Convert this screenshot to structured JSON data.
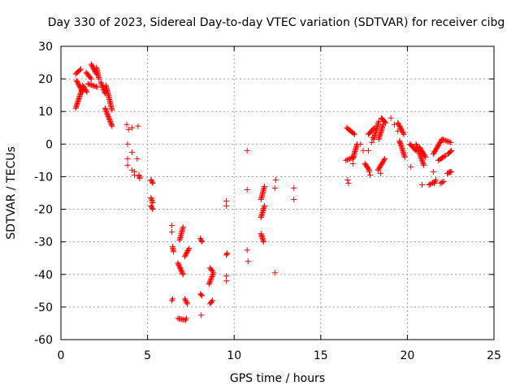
{
  "chart_data": {
    "type": "scatter",
    "title": "Day 330 of 2023, Sidereal Day-to-day VTEC variation (SDTVAR) for receiver cibg",
    "xlabel": "GPS time / hours",
    "ylabel": "SDTVAR / TECUs",
    "xlim": [
      0,
      25
    ],
    "ylim": [
      -60,
      30
    ],
    "xticks": [
      0,
      5,
      10,
      15,
      20,
      25
    ],
    "yticks": [
      -60,
      -50,
      -40,
      -30,
      -20,
      -10,
      0,
      10,
      20,
      30
    ],
    "grid": true,
    "marker": "+",
    "color": "#ff0000",
    "series": [
      {
        "name": "SDTVAR",
        "segments": [
          [
            [
              0.85,
              21.5
            ],
            [
              1.15,
              23.0
            ]
          ],
          [
            [
              0.9,
              19.5
            ],
            [
              1.25,
              16.0
            ]
          ],
          [
            [
              0.85,
              11.0
            ],
            [
              1.2,
              16.5
            ]
          ],
          [
            [
              1.25,
              18.0
            ],
            [
              1.5,
              16.0
            ]
          ],
          [
            [
              1.45,
              22.0
            ],
            [
              1.75,
              20.0
            ]
          ],
          [
            [
              1.75,
              24.5
            ],
            [
              2.05,
              21.5
            ]
          ],
          [
            [
              1.55,
              18.5
            ],
            [
              2.1,
              17.5
            ]
          ],
          [
            [
              2.05,
              23.5
            ],
            [
              2.2,
              20.0
            ]
          ],
          [
            [
              2.3,
              19.0
            ],
            [
              2.55,
              15.5
            ]
          ],
          [
            [
              2.6,
              18.0
            ],
            [
              2.95,
              10.5
            ]
          ],
          [
            [
              2.55,
              11.0
            ],
            [
              2.95,
              5.5
            ]
          ],
          [
            [
              4.5,
              -9.5
            ],
            [
              4.55,
              -10.5
            ]
          ],
          [
            [
              5.2,
              -11.0
            ],
            [
              5.3,
              -12.0
            ]
          ],
          [
            [
              5.2,
              -16.5
            ],
            [
              5.3,
              -18.0
            ]
          ],
          [
            [
              5.2,
              -19.0
            ],
            [
              5.3,
              -20.0
            ]
          ],
          [
            [
              6.45,
              -31.5
            ],
            [
              6.5,
              -33.0
            ]
          ],
          [
            [
              6.75,
              -36.5
            ],
            [
              7.05,
              -40.0
            ]
          ],
          [
            [
              6.85,
              -29.5
            ],
            [
              7.05,
              -25.5
            ]
          ],
          [
            [
              7.15,
              -34.5
            ],
            [
              7.4,
              -32.0
            ]
          ],
          [
            [
              7.15,
              -47.5
            ],
            [
              7.3,
              -49.0
            ]
          ],
          [
            [
              6.75,
              -53.5
            ],
            [
              7.2,
              -54.0
            ]
          ],
          [
            [
              8.05,
              -29.0
            ],
            [
              8.15,
              -30.0
            ]
          ],
          [
            [
              8.05,
              -46.0
            ],
            [
              8.15,
              -46.5
            ]
          ],
          [
            [
              8.6,
              -38.0
            ],
            [
              8.75,
              -39.0
            ]
          ],
          [
            [
              8.55,
              -43.0
            ],
            [
              8.8,
              -39.5
            ]
          ],
          [
            [
              8.6,
              -49.0
            ],
            [
              8.75,
              -48.0
            ]
          ],
          [
            [
              9.55,
              -34.0
            ],
            [
              9.6,
              -33.5
            ]
          ],
          [
            [
              11.55,
              -17.0
            ],
            [
              11.75,
              -13.0
            ]
          ],
          [
            [
              11.55,
              -22.5
            ],
            [
              11.75,
              -19.0
            ]
          ],
          [
            [
              11.55,
              -27.5
            ],
            [
              11.7,
              -30.0
            ]
          ],
          [
            [
              16.5,
              5.0
            ],
            [
              16.95,
              3.0
            ]
          ],
          [
            [
              16.45,
              -5.0
            ],
            [
              16.9,
              -4.0
            ]
          ],
          [
            [
              16.85,
              -4.5
            ],
            [
              17.1,
              0.0
            ]
          ],
          [
            [
              17.55,
              -6.0
            ],
            [
              17.8,
              -8.0
            ]
          ],
          [
            [
              17.75,
              3.0
            ],
            [
              18.1,
              5.0
            ]
          ],
          [
            [
              18.05,
              1.5
            ],
            [
              18.35,
              7.0
            ]
          ],
          [
            [
              18.35,
              1.5
            ],
            [
              18.6,
              6.0
            ]
          ],
          [
            [
              18.3,
              -8.0
            ],
            [
              18.7,
              -4.5
            ]
          ],
          [
            [
              18.5,
              8.0
            ],
            [
              18.75,
              6.5
            ]
          ],
          [
            [
              19.45,
              6.5
            ],
            [
              19.8,
              3.0
            ]
          ],
          [
            [
              19.55,
              1.0
            ],
            [
              19.85,
              -4.0
            ]
          ],
          [
            [
              20.15,
              0.0
            ],
            [
              20.5,
              -2.0
            ]
          ],
          [
            [
              20.5,
              0.0
            ],
            [
              20.95,
              -6.5
            ]
          ],
          [
            [
              20.7,
              -1.0
            ],
            [
              21.05,
              -4.0
            ]
          ],
          [
            [
              21.25,
              -12.5
            ],
            [
              21.6,
              -11.5
            ]
          ],
          [
            [
              21.5,
              -3.0
            ],
            [
              22.0,
              1.5
            ]
          ],
          [
            [
              21.8,
              -5.0
            ],
            [
              22.2,
              -3.5
            ]
          ],
          [
            [
              21.9,
              -12.0
            ],
            [
              22.1,
              -11.5
            ]
          ],
          [
            [
              22.0,
              1.5
            ],
            [
              22.5,
              0.5
            ]
          ],
          [
            [
              22.35,
              -3.0
            ],
            [
              22.55,
              -2.0
            ]
          ],
          [
            [
              22.3,
              -9.0
            ],
            [
              22.55,
              -8.5
            ]
          ]
        ],
        "points": [
          [
            3.8,
            6.0
          ],
          [
            3.9,
            4.5
          ],
          [
            4.1,
            5.0
          ],
          [
            4.45,
            5.5
          ],
          [
            3.85,
            0.0
          ],
          [
            4.1,
            -2.5
          ],
          [
            3.85,
            -4.5
          ],
          [
            4.4,
            -4.5
          ],
          [
            3.85,
            -6.5
          ],
          [
            4.1,
            -8.0
          ],
          [
            4.25,
            -8.5
          ],
          [
            4.25,
            -9.5
          ],
          [
            6.4,
            -25.0
          ],
          [
            6.4,
            -27.0
          ],
          [
            6.45,
            -47.5
          ],
          [
            6.4,
            -48.0
          ],
          [
            7.25,
            -53.5
          ],
          [
            8.1,
            -52.5
          ],
          [
            9.55,
            -17.5
          ],
          [
            9.55,
            -19.0
          ],
          [
            9.55,
            -40.5
          ],
          [
            9.55,
            -42.0
          ],
          [
            10.75,
            -2.0
          ],
          [
            10.75,
            -14.0
          ],
          [
            10.75,
            -32.5
          ],
          [
            10.8,
            -36.0
          ],
          [
            12.4,
            -11.0
          ],
          [
            12.35,
            -13.5
          ],
          [
            12.35,
            -39.5
          ],
          [
            13.45,
            -13.5
          ],
          [
            13.45,
            -17.0
          ],
          [
            16.55,
            -11.0
          ],
          [
            16.6,
            -12.0
          ],
          [
            17.3,
            0.0
          ],
          [
            17.45,
            -2.0
          ],
          [
            17.75,
            -2.0
          ],
          [
            17.8,
            -8.5
          ],
          [
            17.85,
            -9.5
          ],
          [
            18.45,
            -9.0
          ],
          [
            18.0,
            2.0
          ],
          [
            17.95,
            0.5
          ],
          [
            19.05,
            8.0
          ],
          [
            19.25,
            6.0
          ],
          [
            19.45,
            4.0
          ],
          [
            20.2,
            -7.0
          ],
          [
            20.85,
            -12.5
          ],
          [
            21.5,
            -8.5
          ],
          [
            21.55,
            -12.0
          ],
          [
            21.65,
            -11.0
          ],
          [
            22.45,
            -8.5
          ],
          [
            19.55,
            0.5
          ],
          [
            16.85,
            -6.0
          ]
        ]
      }
    ]
  }
}
